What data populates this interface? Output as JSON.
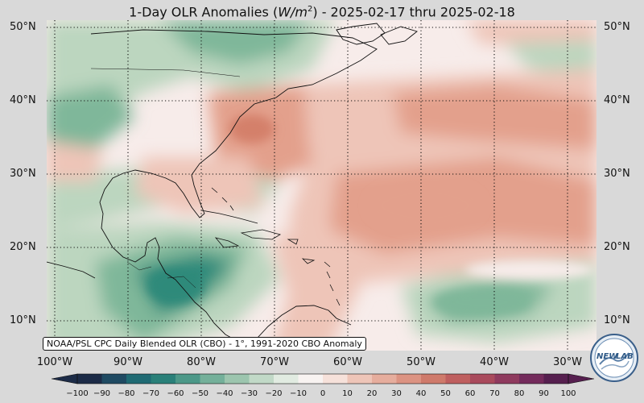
{
  "title": {
    "prefix": "1-Day OLR Anomalies (",
    "variable": "W/m",
    "exponent": "2",
    "suffix": ") - 2025-02-17 thru 2025-02-18"
  },
  "map": {
    "lat_labels": [
      "50°N",
      "40°N",
      "30°N",
      "20°N",
      "10°N"
    ],
    "lon_labels": [
      "100°W",
      "90°W",
      "80°W",
      "70°W",
      "60°W",
      "50°W",
      "40°W",
      "30°W"
    ],
    "gridlines": "dotted",
    "anomaly_colors": {
      "strong_negative": "#2e8a7a",
      "moderate_negative": "#7fb79a",
      "weak_negative": "#bcd6bf",
      "neutral": "#f7ecea",
      "weak_positive": "#eec5b8",
      "moderate_positive": "#e3a08c",
      "strong_positive": "#d4806a"
    }
  },
  "source_note": "NOAA/PSL CPC Daily Blended OLR (CBO) - 1°, 1991-2020 CBO Anomaly",
  "colorbar": {
    "ticks": [
      "−100",
      "−90",
      "−80",
      "−70",
      "−60",
      "−50",
      "−40",
      "−30",
      "−20",
      "−10",
      "0",
      "10",
      "20",
      "30",
      "40",
      "50",
      "60",
      "70",
      "80",
      "90",
      "100"
    ],
    "colors": [
      "#1c2b47",
      "#1f4a62",
      "#1f6a73",
      "#2a8079",
      "#4c9888",
      "#74b09a",
      "#9cc5ae",
      "#c1d9c7",
      "#e1ebe1",
      "#f8f3f1",
      "#f6e1da",
      "#eec5b8",
      "#e6ad9d",
      "#dc9382",
      "#cf7a6b",
      "#bf5f5f",
      "#a94a5c",
      "#8f3a5e",
      "#742b5c",
      "#561f4f"
    ]
  },
  "logo": {
    "text_left": "NEW",
    "text_right": "LAB"
  }
}
